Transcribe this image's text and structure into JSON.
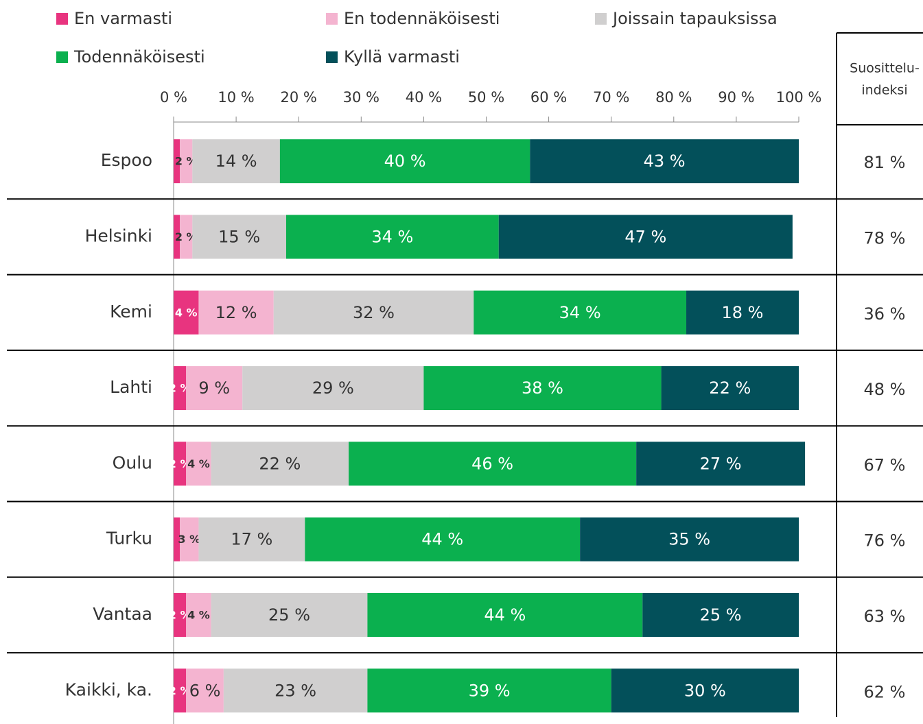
{
  "chart_data": {
    "type": "bar",
    "orientation": "horizontal",
    "stacked": true,
    "categories": [
      "Espoo",
      "Helsinki",
      "Kemi",
      "Lahti",
      "Oulu",
      "Turku",
      "Vantaa",
      "Kaikki, ka."
    ],
    "series": [
      {
        "name": "En varmasti",
        "color": "#e8347f",
        "label_color": "#ffffff",
        "values": [
          1,
          1,
          4,
          2,
          2,
          1,
          2,
          2
        ],
        "value_labels": [
          null,
          null,
          "4 %",
          "2 %",
          "2 %",
          null,
          "2 %",
          "2 %"
        ]
      },
      {
        "name": "En todennäköisesti",
        "color": "#f4b4d0",
        "label_color": "#333333",
        "values": [
          2,
          2,
          12,
          9,
          4,
          3,
          4,
          6
        ],
        "value_labels": [
          "2 %",
          "2 %",
          "12 %",
          "9 %",
          "4 %",
          "3 %",
          "4 %",
          "6 %"
        ]
      },
      {
        "name": "Joissain tapauksissa",
        "color": "#d0cfcf",
        "label_color": "#333333",
        "values": [
          14,
          15,
          32,
          29,
          22,
          17,
          25,
          23
        ],
        "value_labels": [
          "14 %",
          "15 %",
          "32 %",
          "29 %",
          "22 %",
          "17 %",
          "25 %",
          "23 %"
        ]
      },
      {
        "name": "Todennäköisesti",
        "color": "#0bb04f",
        "label_color": "#ffffff",
        "values": [
          40,
          34,
          34,
          38,
          46,
          44,
          44,
          39
        ],
        "value_labels": [
          "40 %",
          "34 %",
          "34 %",
          "38 %",
          "46 %",
          "44 %",
          "44 %",
          "39 %"
        ]
      },
      {
        "name": "Kyllä varmasti",
        "color": "#03505a",
        "label_color": "#ffffff",
        "values": [
          43,
          47,
          18,
          22,
          27,
          35,
          25,
          30
        ],
        "value_labels": [
          "43 %",
          "47 %",
          "18 %",
          "22 %",
          "27 %",
          "35 %",
          "25 %",
          "30 %"
        ]
      }
    ],
    "xlim": [
      0,
      100
    ],
    "xticks": [
      {
        "value": 0,
        "label": "0 %"
      },
      {
        "value": 10,
        "label": "10 %"
      },
      {
        "value": 20,
        "label": "20 %"
      },
      {
        "value": 30,
        "label": "30 %"
      },
      {
        "value": 40,
        "label": "40 %"
      },
      {
        "value": 50,
        "label": "50 %"
      },
      {
        "value": 60,
        "label": "60 %"
      },
      {
        "value": 70,
        "label": "70 %"
      },
      {
        "value": 80,
        "label": "80 %"
      },
      {
        "value": 90,
        "label": "90 %"
      },
      {
        "value": 100,
        "label": "100 %"
      }
    ],
    "legend": "top",
    "index": {
      "title": [
        "Suosittelu-",
        "indeksi"
      ],
      "values": [
        81,
        78,
        36,
        48,
        67,
        76,
        63,
        62
      ],
      "value_labels": [
        "81 %",
        "78 %",
        "36 %",
        "48 %",
        "67 %",
        "76 %",
        "63 %",
        "62 %"
      ]
    }
  }
}
